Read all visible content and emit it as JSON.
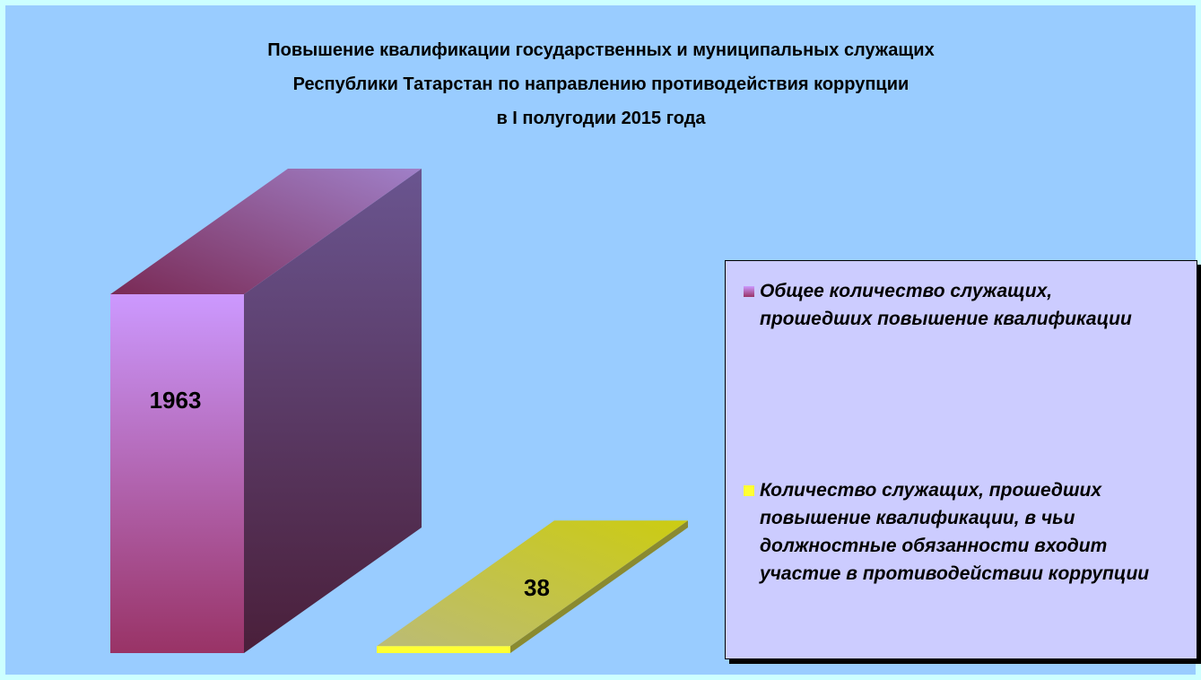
{
  "chart_data": {
    "type": "bar3d",
    "title": [
      "Повышение квалификации государственных и муниципальных служащих",
      "Республики Татарстан по направлению противодействия коррупции",
      "в I полугодии 2015 года"
    ],
    "categories": [
      null
    ],
    "series": [
      {
        "name": "Общее количество служащих, прошедших повышение квалификации",
        "color": "#cc99ff",
        "values": [
          1963
        ]
      },
      {
        "name": "Количество служащих, прошедших повышение квалификации, в чьи должностные обязанности входит участие в противодействии коррупции",
        "color": "#ffff33",
        "values": [
          38
        ]
      }
    ],
    "ylim": [
      0,
      2000
    ],
    "legend": "right"
  }
}
